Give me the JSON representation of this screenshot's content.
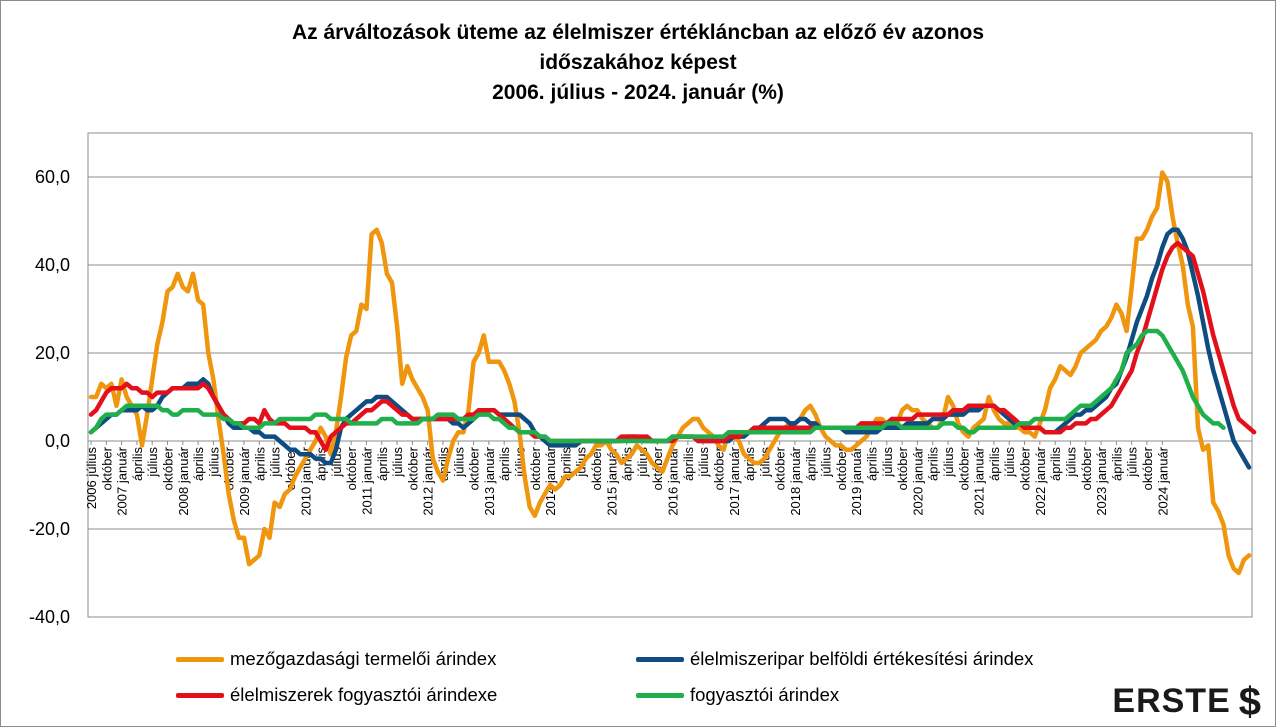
{
  "title_lines": [
    "Az árváltozások üteme az élelmiszer értékláncban az előző év azonos",
    "időszakához képest",
    "2006. július - 2024. január (%)"
  ],
  "logo_text": "ERSTE",
  "chart_data": {
    "type": "line",
    "title": "Az árváltozások üteme az élelmiszer értékláncban az előző év azonos időszakához képest 2006. július - 2024. január (%)",
    "ylim": [
      -40,
      70
    ],
    "y_ticks": [
      "-40,0",
      "-20,0",
      "0,0",
      "20,0",
      "40,0",
      "60,0"
    ],
    "y_tick_values": [
      -40,
      -20,
      0,
      20,
      40,
      60
    ],
    "grid": true,
    "legend_position": "bottom",
    "x_start": "2006-07",
    "x_end": "2024-01",
    "x_ticks": [
      "2006 július",
      "október",
      "2007 január",
      "április",
      "július",
      "október",
      "2008 január",
      "április",
      "július",
      "október",
      "2009 január",
      "április",
      "július",
      "október",
      "2010 január",
      "április",
      "július",
      "október",
      "2011 január",
      "április",
      "július",
      "október",
      "2012 január",
      "április",
      "július",
      "október",
      "2013 január",
      "április",
      "július",
      "október",
      "2014 január",
      "április",
      "július",
      "október",
      "2015 január",
      "április",
      "július",
      "október",
      "2016 január",
      "április",
      "július",
      "október",
      "2017 január",
      "április",
      "július",
      "október",
      "2018 január",
      "április",
      "július",
      "október",
      "2019 január",
      "április",
      "július",
      "október",
      "2020 január",
      "április",
      "július",
      "október",
      "2021 január",
      "április",
      "július",
      "október",
      "2022 január",
      "április",
      "július",
      "október",
      "2023 január",
      "április",
      "július",
      "október",
      "2024 január"
    ],
    "series": [
      {
        "name": "mezőgazdasági termelői árindex",
        "color": "#f0960e",
        "values": [
          10,
          10,
          13,
          12,
          13,
          8,
          14,
          10,
          8,
          6,
          -1,
          6,
          14,
          22,
          27,
          34,
          35,
          38,
          35,
          34,
          38,
          32,
          31,
          20,
          14,
          5,
          -3,
          -12,
          -18,
          -22,
          -22,
          -28,
          -27,
          -26,
          -20,
          -22,
          -14,
          -15,
          -12,
          -11,
          -8,
          -6,
          -4,
          -2,
          0,
          3,
          1,
          -3,
          2,
          10,
          19,
          24,
          25,
          31,
          30,
          47,
          48,
          45,
          38,
          36,
          26,
          13,
          17,
          14,
          12,
          10,
          7,
          -4,
          -7,
          -9,
          -4,
          0,
          2,
          2,
          7,
          18,
          20,
          24,
          18,
          18,
          18,
          16,
          13,
          9,
          2,
          -8,
          -15,
          -17,
          -14,
          -12,
          -10,
          -11,
          -10,
          -8,
          -8,
          -7,
          -6,
          -4,
          -3,
          -1,
          -1,
          0,
          -2,
          -3,
          -5,
          -4,
          -3,
          -1,
          -2,
          -3,
          -5,
          -6,
          -7,
          -4,
          -1,
          1,
          3,
          4,
          5,
          5,
          3,
          2,
          1,
          -1,
          -2,
          2,
          1,
          0,
          -3,
          -4,
          -5,
          -5,
          -4,
          -2,
          0,
          2,
          3,
          4,
          4,
          5,
          7,
          8,
          6,
          3,
          1,
          0,
          -1,
          -1,
          -2,
          -2,
          -1,
          0,
          1,
          3,
          5,
          5,
          4,
          5,
          4,
          7,
          8,
          7,
          7,
          5,
          4,
          3,
          3,
          5,
          10,
          8,
          4,
          2,
          1,
          3,
          4,
          5,
          10,
          7,
          5,
          4,
          4,
          3,
          3,
          2,
          2,
          1,
          4,
          7,
          12,
          14,
          17,
          16,
          15,
          17,
          20,
          21,
          22,
          23,
          25,
          26,
          28,
          31,
          29,
          25,
          35,
          46,
          46,
          48,
          51,
          53,
          61,
          59,
          51,
          45,
          40,
          31,
          26,
          3,
          -2,
          -1,
          -14,
          -16,
          -19,
          -26,
          -29,
          -30,
          -27,
          -26
        ]
      },
      {
        "name": "élelmiszeripar belföldi értékesítési árindex",
        "color": "#0f4c81",
        "values": [
          2,
          3,
          4,
          5,
          6,
          6,
          7,
          7,
          7,
          7,
          8,
          7,
          7,
          8,
          10,
          11,
          12,
          12,
          12,
          13,
          13,
          13,
          14,
          13,
          10,
          8,
          6,
          4,
          3,
          3,
          3,
          3,
          2,
          2,
          1,
          1,
          1,
          0,
          -1,
          -2,
          -2,
          -3,
          -3,
          -3,
          -4,
          -4,
          -5,
          -5,
          -2,
          3,
          5,
          6,
          7,
          8,
          9,
          9,
          10,
          10,
          10,
          9,
          8,
          7,
          6,
          5,
          5,
          5,
          5,
          5,
          5,
          5,
          5,
          4,
          4,
          3,
          4,
          5,
          7,
          7,
          7,
          7,
          6,
          6,
          6,
          6,
          6,
          5,
          4,
          2,
          1,
          0,
          -1,
          -1,
          -1,
          -1,
          -1,
          -1,
          0,
          0,
          0,
          0,
          0,
          0,
          0,
          0,
          0,
          1,
          1,
          1,
          0,
          0,
          0,
          0,
          0,
          0,
          1,
          1,
          1,
          1,
          1,
          0,
          0,
          0,
          0,
          0,
          0,
          0,
          1,
          1,
          1,
          2,
          3,
          3,
          4,
          5,
          5,
          5,
          5,
          4,
          4,
          5,
          5,
          4,
          4,
          3,
          3,
          3,
          3,
          3,
          2,
          2,
          2,
          2,
          2,
          2,
          2,
          3,
          3,
          3,
          3,
          3,
          4,
          4,
          4,
          4,
          4,
          5,
          5,
          5,
          6,
          6,
          6,
          6,
          7,
          7,
          7,
          8,
          8,
          8,
          7,
          6,
          5,
          4,
          4,
          3,
          3,
          3,
          3,
          2,
          2,
          2,
          3,
          4,
          5,
          6,
          6,
          7,
          7,
          8,
          9,
          10,
          12,
          13,
          16,
          19,
          23,
          27,
          30,
          33,
          37,
          40,
          44,
          47,
          48,
          48,
          46,
          43,
          38,
          33,
          27,
          21,
          16,
          12,
          8,
          4,
          0,
          -2,
          -4,
          -6
        ]
      },
      {
        "name": "élelmiszerek fogyasztói árindexe",
        "color": "#e3101c",
        "values": [
          6,
          7,
          9,
          11,
          12,
          12,
          12,
          13,
          12,
          12,
          11,
          11,
          10,
          11,
          11,
          11,
          12,
          12,
          12,
          12,
          12,
          12,
          13,
          12,
          10,
          8,
          6,
          5,
          4,
          4,
          4,
          5,
          5,
          4,
          7,
          5,
          4,
          4,
          4,
          3,
          3,
          3,
          3,
          2,
          2,
          0,
          -2,
          1,
          2,
          3,
          4,
          4,
          5,
          6,
          7,
          7,
          8,
          9,
          9,
          8,
          7,
          6,
          6,
          5,
          5,
          5,
          5,
          5,
          5,
          5,
          5,
          5,
          5,
          5,
          6,
          6,
          7,
          7,
          7,
          7,
          6,
          5,
          4,
          3,
          2,
          2,
          2,
          1,
          1,
          1,
          0,
          0,
          0,
          0,
          0,
          0,
          0,
          0,
          0,
          0,
          0,
          0,
          0,
          0,
          1,
          1,
          1,
          1,
          1,
          1,
          0,
          0,
          0,
          0,
          0,
          1,
          1,
          1,
          1,
          0,
          0,
          0,
          0,
          0,
          0,
          1,
          1,
          1,
          2,
          2,
          3,
          3,
          3,
          3,
          3,
          3,
          3,
          3,
          3,
          3,
          3,
          3,
          3,
          3,
          3,
          3,
          3,
          3,
          3,
          3,
          3,
          4,
          4,
          4,
          4,
          4,
          4,
          5,
          5,
          5,
          5,
          5,
          6,
          6,
          6,
          6,
          6,
          6,
          6,
          7,
          7,
          7,
          8,
          8,
          8,
          8,
          8,
          8,
          7,
          7,
          6,
          5,
          4,
          3,
          3,
          3,
          3,
          2,
          2,
          2,
          2,
          3,
          3,
          4,
          4,
          4,
          5,
          5,
          6,
          7,
          8,
          10,
          12,
          14,
          16,
          20,
          23,
          27,
          31,
          35,
          39,
          42,
          44,
          45,
          44,
          43,
          42,
          38,
          34,
          29,
          24,
          20,
          16,
          12,
          8,
          5,
          4,
          3,
          2
        ]
      },
      {
        "name": "fogyasztói árindex",
        "color": "#1fb04c",
        "values": [
          2,
          3,
          5,
          6,
          6,
          6,
          7,
          8,
          8,
          8,
          8,
          8,
          8,
          8,
          7,
          7,
          6,
          6,
          7,
          7,
          7,
          7,
          6,
          6,
          6,
          6,
          5,
          5,
          4,
          4,
          3,
          3,
          3,
          3,
          4,
          4,
          4,
          5,
          5,
          5,
          5,
          5,
          5,
          5,
          6,
          6,
          6,
          5,
          5,
          5,
          5,
          4,
          4,
          4,
          4,
          4,
          4,
          5,
          5,
          5,
          4,
          4,
          4,
          4,
          4,
          5,
          5,
          5,
          6,
          6,
          6,
          6,
          5,
          5,
          5,
          5,
          6,
          6,
          6,
          5,
          5,
          4,
          3,
          3,
          2,
          2,
          2,
          2,
          1,
          1,
          0,
          0,
          0,
          0,
          0,
          0,
          0,
          0,
          0,
          0,
          0,
          0,
          0,
          0,
          0,
          0,
          0,
          0,
          0,
          0,
          0,
          0,
          0,
          0,
          1,
          1,
          1,
          1,
          1,
          1,
          1,
          1,
          1,
          1,
          1,
          2,
          2,
          2,
          2,
          2,
          2,
          2,
          2,
          2,
          2,
          2,
          2,
          2,
          2,
          2,
          2,
          2,
          3,
          3,
          3,
          3,
          3,
          3,
          3,
          3,
          3,
          3,
          3,
          3,
          3,
          3,
          4,
          4,
          4,
          3,
          3,
          3,
          3,
          3,
          3,
          3,
          3,
          4,
          4,
          4,
          3,
          3,
          2,
          2,
          3,
          3,
          3,
          3,
          3,
          3,
          3,
          3,
          4,
          4,
          4,
          5,
          5,
          5,
          5,
          5,
          5,
          5,
          6,
          7,
          8,
          8,
          8,
          9,
          10,
          11,
          12,
          14,
          16,
          20,
          21,
          22,
          24,
          25,
          25,
          25,
          24,
          22,
          20,
          18,
          16,
          13,
          10,
          8,
          6,
          5,
          4,
          4,
          3
        ]
      }
    ]
  }
}
